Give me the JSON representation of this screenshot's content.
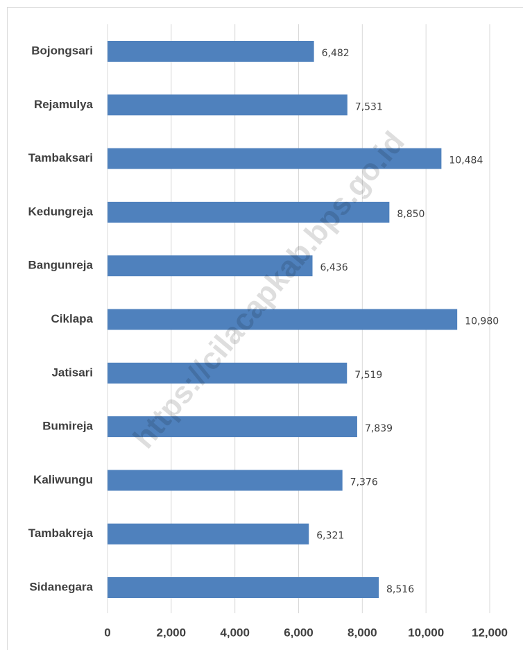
{
  "chart_data": {
    "type": "bar",
    "orientation": "horizontal",
    "categories": [
      "Bojongsari",
      "Rejamulya",
      "Tambaksari",
      "Kedungreja",
      "Bangunreja",
      "Ciklapa",
      "Jatisari",
      "Bumireja",
      "Kaliwungu",
      "Tambakreja",
      "Sidanegara"
    ],
    "values": [
      6482,
      7531,
      10484,
      8850,
      6436,
      10980,
      7519,
      7839,
      7376,
      6321,
      8516
    ],
    "value_labels": [
      "6,482",
      "7,531",
      "10,484",
      "8,850",
      "6,436",
      "10,980",
      "7,519",
      "7,839",
      "7,376",
      "6,321",
      "8,516"
    ],
    "color": "#4f81bd",
    "xlim": [
      0,
      12000
    ],
    "xticks": [
      0,
      {
        "value": 2000,
        "label": "2,000"
      },
      {
        "value": 4000,
        "label": "4,000"
      },
      {
        "value": 6000,
        "label": "6,000"
      },
      {
        "value": 8000,
        "label": "8,000"
      },
      {
        "value": 10000,
        "label": "10,000"
      },
      {
        "value": 12000,
        "label": "12,000"
      }
    ],
    "grid": true,
    "watermark": "https://cilacapkab.bps.go.id"
  }
}
